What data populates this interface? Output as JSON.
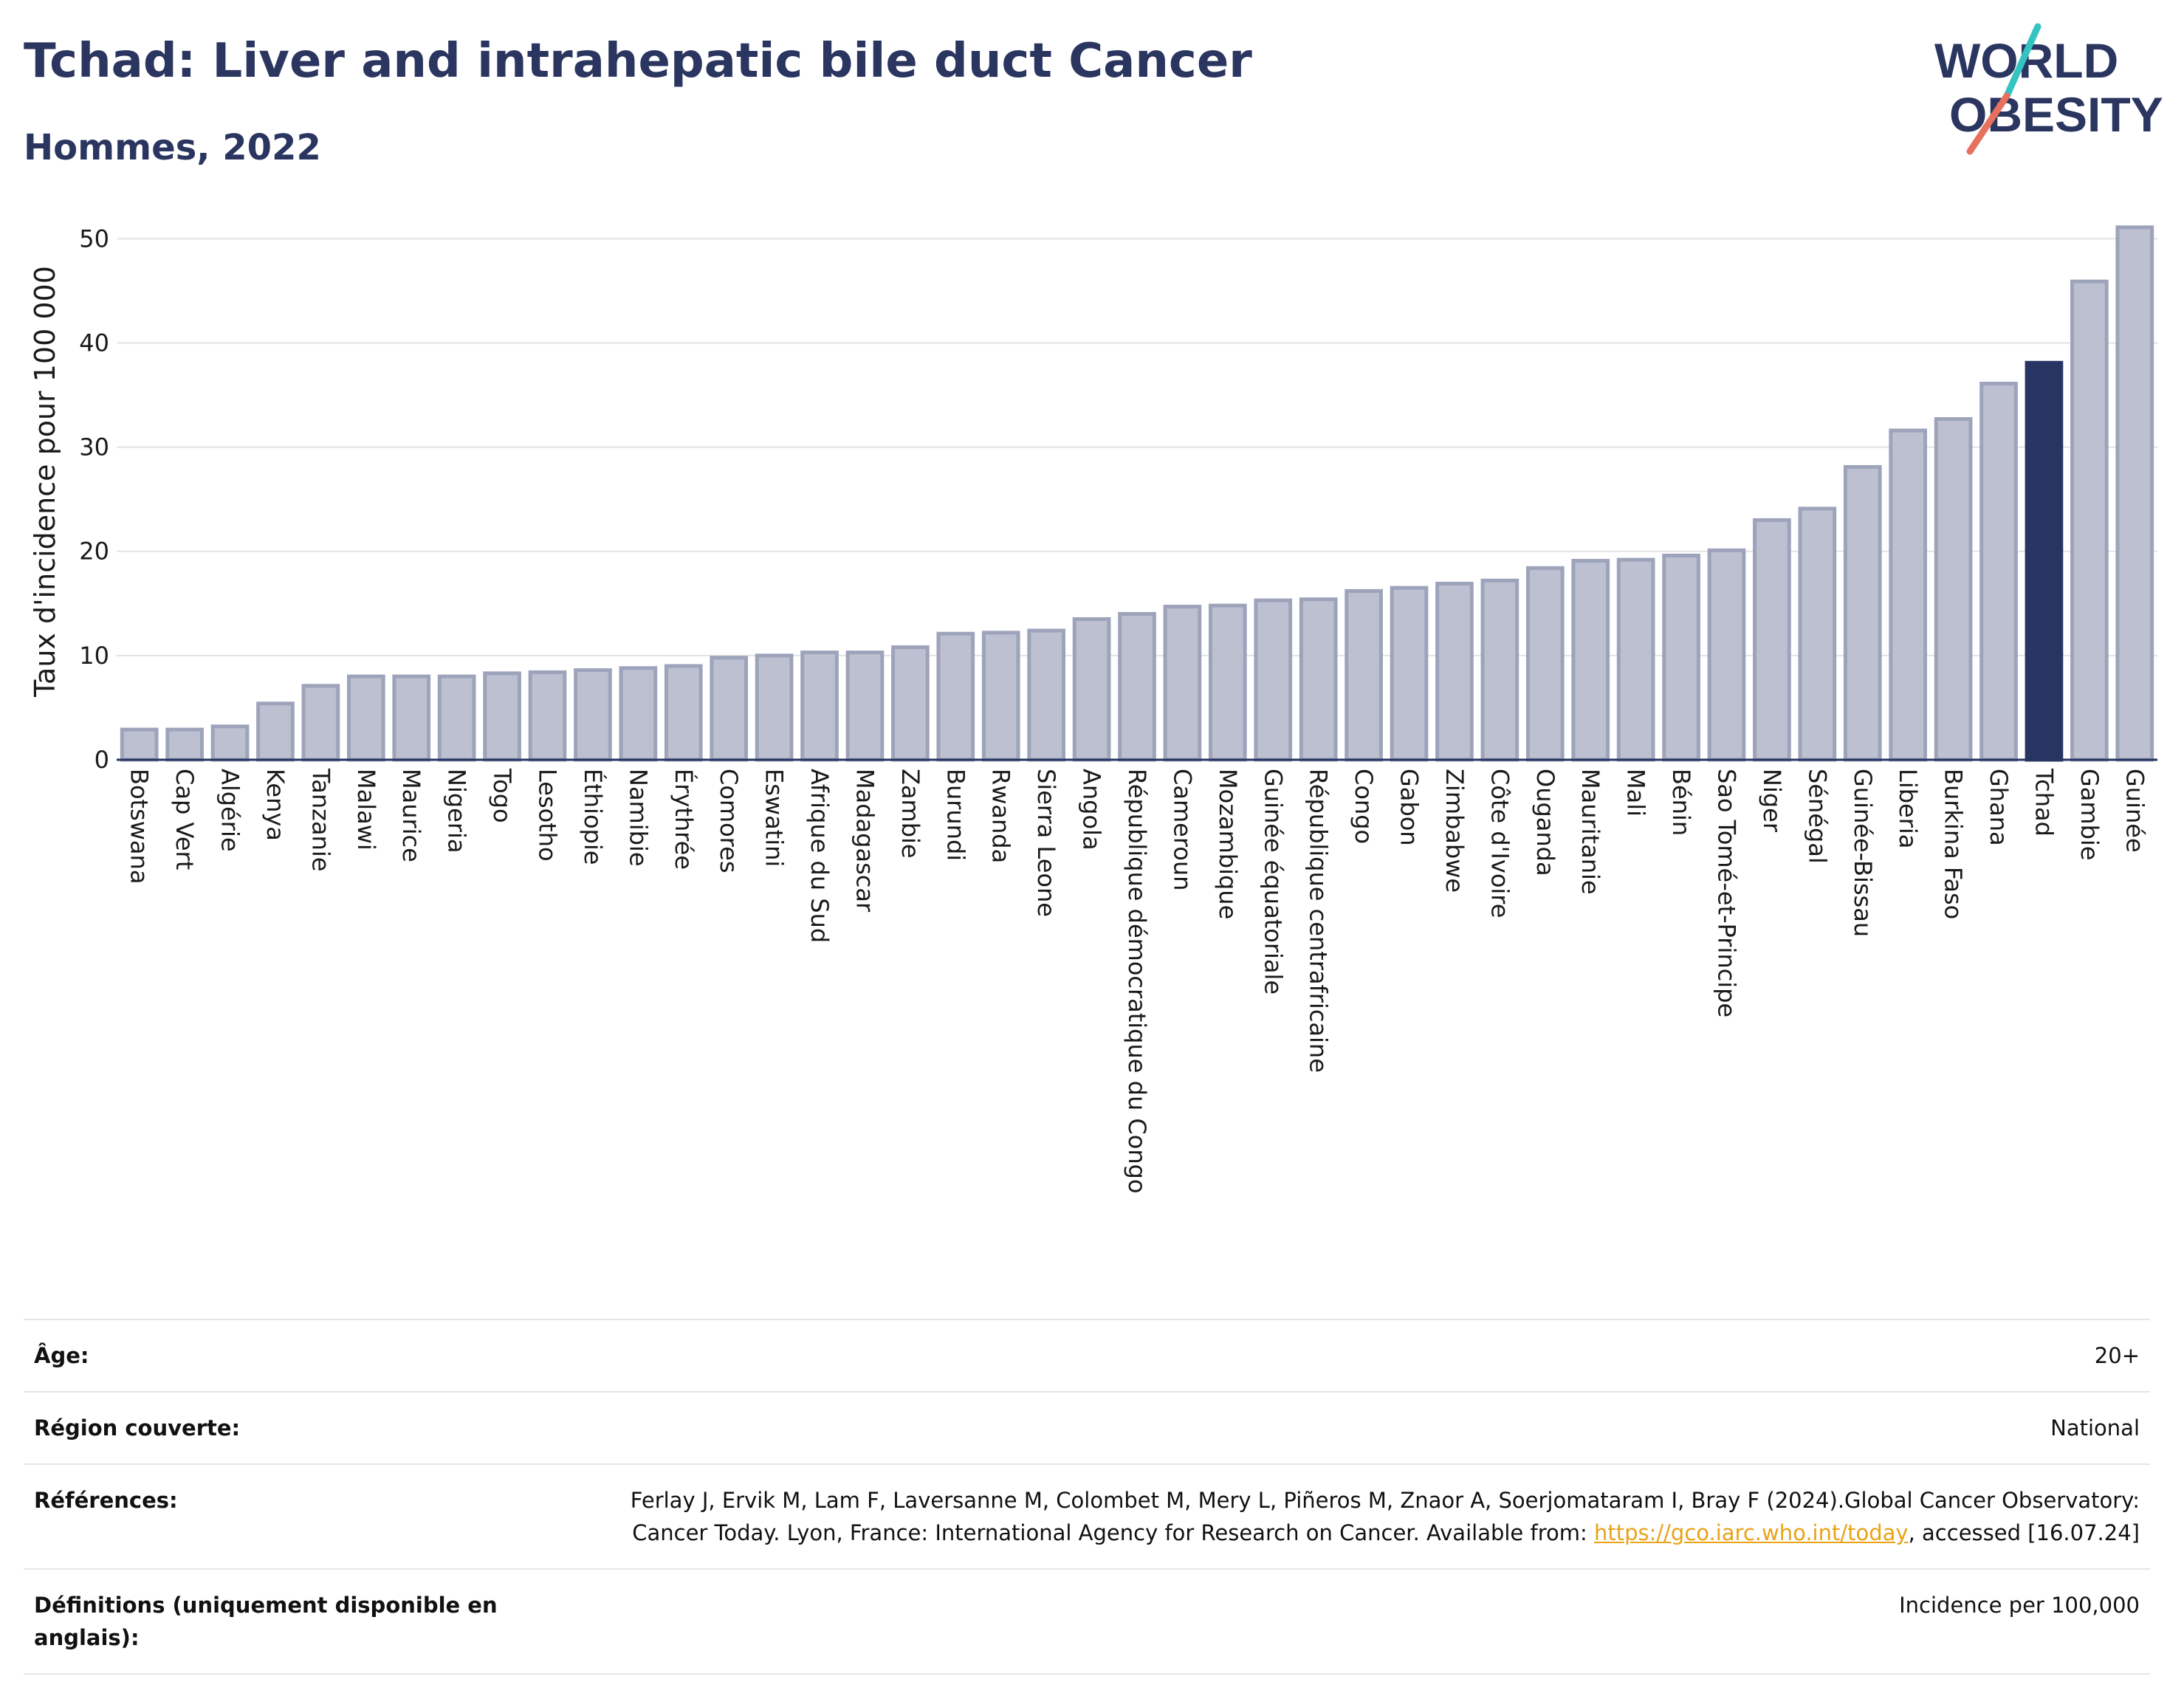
{
  "header": {
    "title": "Tchad: Liver and intrahepatic bile duct Cancer",
    "subtitle": "Hommes, 2022"
  },
  "logo": {
    "line1": "WORLD",
    "line2": "OBESITY"
  },
  "colors": {
    "bar": "#bcc0d0",
    "bar_stroke": "#9da3bb",
    "highlight": "#283562",
    "grid": "#e3e3e3",
    "title": "#2a3560",
    "link": "#e8a317"
  },
  "chart_data": {
    "type": "bar",
    "title": "Tchad: Liver and intrahepatic bile duct Cancer",
    "subtitle": "Hommes, 2022",
    "xlabel": "",
    "ylabel": "Taux d'incidence pour 100 000",
    "ylim": [
      0,
      53
    ],
    "yticks": [
      0,
      10,
      20,
      30,
      40,
      50
    ],
    "grid": true,
    "highlight": "Tchad",
    "categories": [
      "Botswana",
      "Cap Vert",
      "Algérie",
      "Kenya",
      "Tanzanie",
      "Malawi",
      "Maurice",
      "Nigeria",
      "Togo",
      "Lesotho",
      "Éthiopie",
      "Namibie",
      "Érythrée",
      "Comores",
      "Eswatini",
      "Afrique du Sud",
      "Madagascar",
      "Zambie",
      "Burundi",
      "Rwanda",
      "Sierra Leone",
      "Angola",
      "République démocratique du Congo",
      "Cameroun",
      "Mozambique",
      "Guinée équatoriale",
      "République centrafricaine",
      "Congo",
      "Gabon",
      "Zimbabwe",
      "Côte d'Ivoire",
      "Ouganda",
      "Mauritanie",
      "Mali",
      "Bénin",
      "Sao Tomé-et-Principe",
      "Niger",
      "Sénégal",
      "Guinée-Bissau",
      "Liberia",
      "Burkina Faso",
      "Ghana",
      "Tchad",
      "Gambie",
      "Guinée"
    ],
    "values": [
      2.9,
      2.9,
      3.2,
      5.4,
      7.1,
      8.0,
      8.0,
      8.0,
      8.3,
      8.4,
      8.6,
      8.8,
      9.0,
      9.8,
      10.0,
      10.3,
      10.3,
      10.8,
      12.1,
      12.2,
      12.4,
      13.5,
      14.0,
      14.7,
      14.8,
      15.3,
      15.4,
      16.2,
      16.5,
      16.9,
      17.2,
      18.4,
      19.1,
      19.2,
      19.6,
      20.1,
      23.0,
      24.1,
      28.1,
      31.6,
      32.7,
      36.1,
      38.1,
      45.9,
      51.1
    ]
  },
  "info": {
    "age_label": "Âge:",
    "age_value": "20+",
    "region_label": "Région couverte:",
    "region_value": "National",
    "refs_label": "Références:",
    "refs_text": "Ferlay J, Ervik M, Lam F, Laversanne M, Colombet M, Mery L, Piñeros M, Znaor A, Soerjomataram I, Bray F (2024).Global Cancer Observatory: Cancer Today. Lyon, France: International Agency for Research on Cancer. Available from: ",
    "refs_link": "https://gco.iarc.who.int/today",
    "refs_tail": ", accessed [16.07.24]",
    "defs_label": "Définitions (uniquement disponible en anglais):",
    "defs_value": "Incidence per 100,000"
  }
}
